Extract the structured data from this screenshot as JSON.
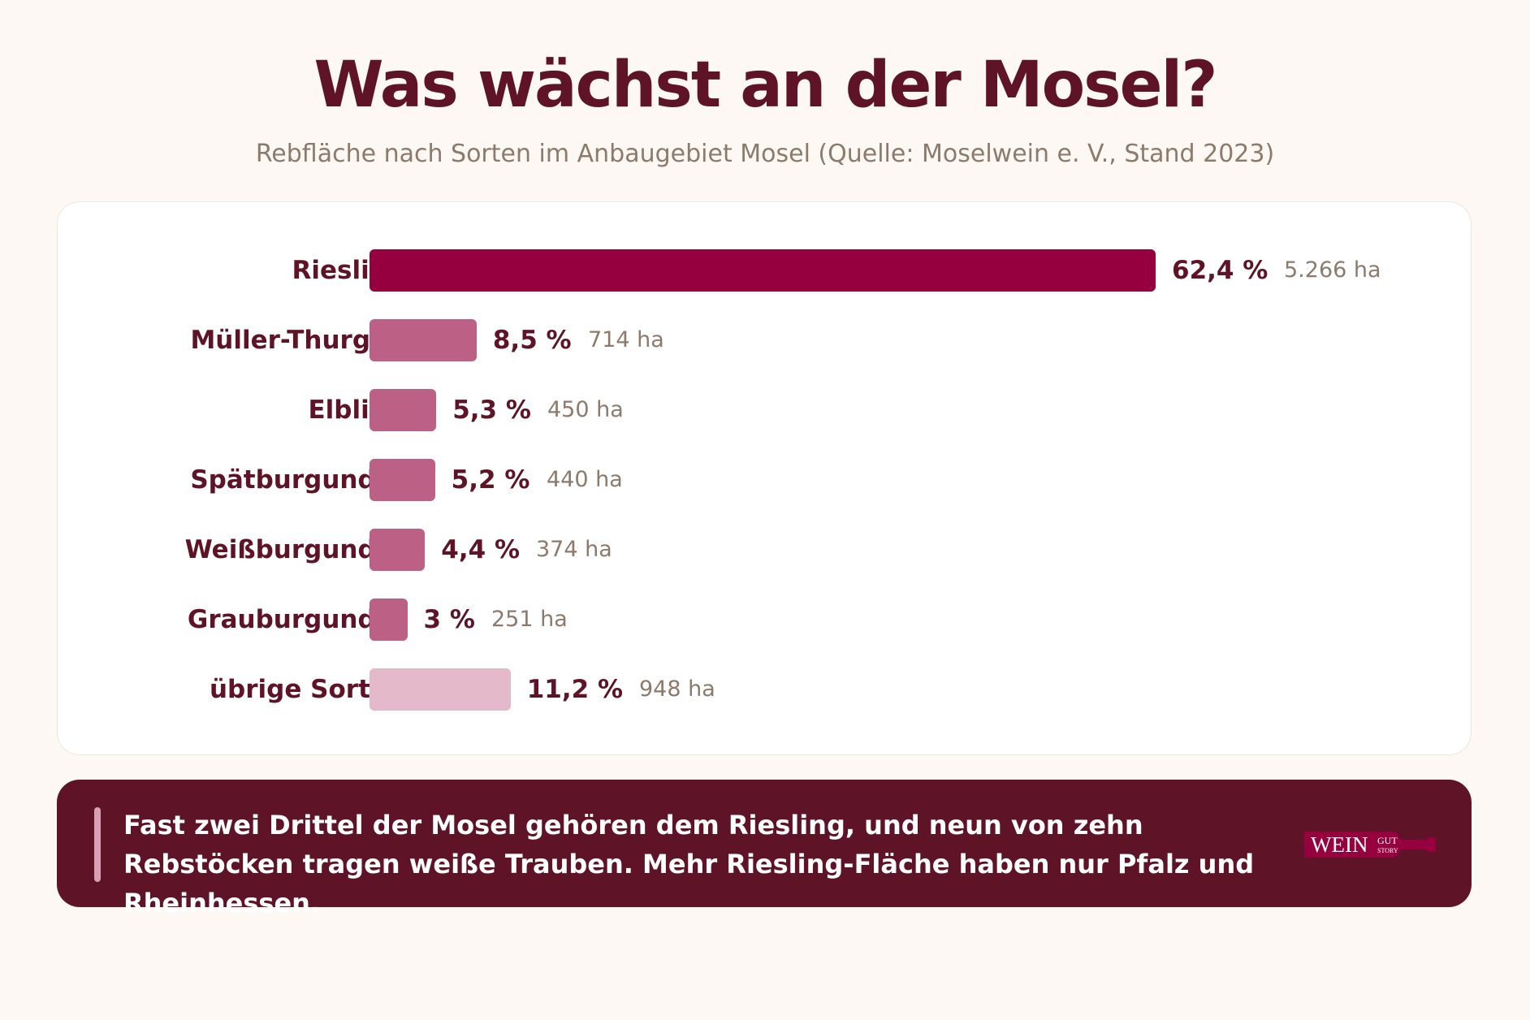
{
  "header": {
    "title": "Was wächst an der Mosel?",
    "subtitle": "Rebfläche nach Sorten im Anbaugebiet Mosel (Quelle: Moselwein e. V., Stand 2023)"
  },
  "chart_data": {
    "type": "bar",
    "orientation": "horizontal",
    "title": "Was wächst an der Mosel?",
    "subtitle": "Rebfläche nach Sorten im Anbaugebiet Mosel (Quelle: Moselwein e. V., Stand 2023)",
    "categories": [
      "Riesling",
      "Müller-Thurgau",
      "Elbling",
      "Spätburgunder",
      "Weißburgunder",
      "Grauburgunder",
      "übrige Sorten"
    ],
    "values": [
      62.4,
      8.5,
      5.3,
      5.2,
      4.4,
      3,
      11.2
    ],
    "percent_labels": [
      "62,4 %",
      "8,5 %",
      "5,3 %",
      "5,2 %",
      "4,4 %",
      "3 %",
      "11,2 %"
    ],
    "hectares": [
      5266,
      714,
      450,
      440,
      374,
      251,
      948
    ],
    "hectare_labels": [
      "5.266 ha",
      "714 ha",
      "450 ha",
      "440 ha",
      "374 ha",
      "251 ha",
      "948 ha"
    ],
    "bar_colors": [
      "#96003f",
      "#bd6085",
      "#bd6085",
      "#bd6085",
      "#bd6085",
      "#bd6085",
      "#e4b9ca"
    ],
    "xlim": [
      0,
      62.4
    ],
    "xlabel": "",
    "ylabel": "",
    "grid": false,
    "legend": false
  },
  "note": {
    "text": "Fast zwei Drittel der Mosel gehören dem Riesling, und neun von zehn Rebstöcken tragen weiße Trauben.  Mehr Riesling-Fläche haben nur Pfalz und Rheinhessen."
  },
  "logo": {
    "word": "WEIN",
    "small_top": "GUT",
    "small_bottom": "STORY",
    "icon": "wine-bottle-logo"
  },
  "colors": {
    "background": "#fdf8f4",
    "primary": "#5e1327",
    "accent": "#96003f",
    "muted": "#8c7b6c"
  }
}
